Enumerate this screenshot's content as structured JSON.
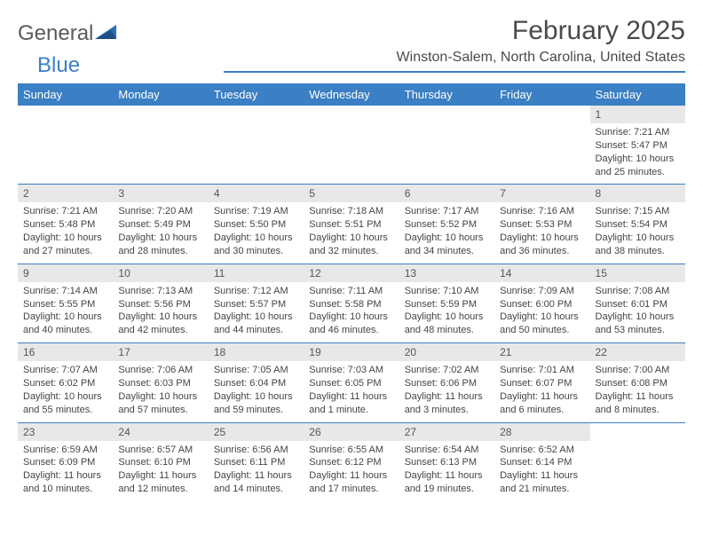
{
  "logo": {
    "text1": "General",
    "text2": "Blue"
  },
  "title": "February 2025",
  "location": "Winston-Salem, North Carolina, United States",
  "colors": {
    "accent": "#3b7fc4",
    "dayHeaderBg": "#e8e8e8",
    "text": "#4a4a4a"
  },
  "weekdays": [
    "Sunday",
    "Monday",
    "Tuesday",
    "Wednesday",
    "Thursday",
    "Friday",
    "Saturday"
  ],
  "weeks": [
    [
      null,
      null,
      null,
      null,
      null,
      null,
      {
        "n": "1",
        "sunrise": "Sunrise: 7:21 AM",
        "sunset": "Sunset: 5:47 PM",
        "daylight": "Daylight: 10 hours and 25 minutes."
      }
    ],
    [
      {
        "n": "2",
        "sunrise": "Sunrise: 7:21 AM",
        "sunset": "Sunset: 5:48 PM",
        "daylight": "Daylight: 10 hours and 27 minutes."
      },
      {
        "n": "3",
        "sunrise": "Sunrise: 7:20 AM",
        "sunset": "Sunset: 5:49 PM",
        "daylight": "Daylight: 10 hours and 28 minutes."
      },
      {
        "n": "4",
        "sunrise": "Sunrise: 7:19 AM",
        "sunset": "Sunset: 5:50 PM",
        "daylight": "Daylight: 10 hours and 30 minutes."
      },
      {
        "n": "5",
        "sunrise": "Sunrise: 7:18 AM",
        "sunset": "Sunset: 5:51 PM",
        "daylight": "Daylight: 10 hours and 32 minutes."
      },
      {
        "n": "6",
        "sunrise": "Sunrise: 7:17 AM",
        "sunset": "Sunset: 5:52 PM",
        "daylight": "Daylight: 10 hours and 34 minutes."
      },
      {
        "n": "7",
        "sunrise": "Sunrise: 7:16 AM",
        "sunset": "Sunset: 5:53 PM",
        "daylight": "Daylight: 10 hours and 36 minutes."
      },
      {
        "n": "8",
        "sunrise": "Sunrise: 7:15 AM",
        "sunset": "Sunset: 5:54 PM",
        "daylight": "Daylight: 10 hours and 38 minutes."
      }
    ],
    [
      {
        "n": "9",
        "sunrise": "Sunrise: 7:14 AM",
        "sunset": "Sunset: 5:55 PM",
        "daylight": "Daylight: 10 hours and 40 minutes."
      },
      {
        "n": "10",
        "sunrise": "Sunrise: 7:13 AM",
        "sunset": "Sunset: 5:56 PM",
        "daylight": "Daylight: 10 hours and 42 minutes."
      },
      {
        "n": "11",
        "sunrise": "Sunrise: 7:12 AM",
        "sunset": "Sunset: 5:57 PM",
        "daylight": "Daylight: 10 hours and 44 minutes."
      },
      {
        "n": "12",
        "sunrise": "Sunrise: 7:11 AM",
        "sunset": "Sunset: 5:58 PM",
        "daylight": "Daylight: 10 hours and 46 minutes."
      },
      {
        "n": "13",
        "sunrise": "Sunrise: 7:10 AM",
        "sunset": "Sunset: 5:59 PM",
        "daylight": "Daylight: 10 hours and 48 minutes."
      },
      {
        "n": "14",
        "sunrise": "Sunrise: 7:09 AM",
        "sunset": "Sunset: 6:00 PM",
        "daylight": "Daylight: 10 hours and 50 minutes."
      },
      {
        "n": "15",
        "sunrise": "Sunrise: 7:08 AM",
        "sunset": "Sunset: 6:01 PM",
        "daylight": "Daylight: 10 hours and 53 minutes."
      }
    ],
    [
      {
        "n": "16",
        "sunrise": "Sunrise: 7:07 AM",
        "sunset": "Sunset: 6:02 PM",
        "daylight": "Daylight: 10 hours and 55 minutes."
      },
      {
        "n": "17",
        "sunrise": "Sunrise: 7:06 AM",
        "sunset": "Sunset: 6:03 PM",
        "daylight": "Daylight: 10 hours and 57 minutes."
      },
      {
        "n": "18",
        "sunrise": "Sunrise: 7:05 AM",
        "sunset": "Sunset: 6:04 PM",
        "daylight": "Daylight: 10 hours and 59 minutes."
      },
      {
        "n": "19",
        "sunrise": "Sunrise: 7:03 AM",
        "sunset": "Sunset: 6:05 PM",
        "daylight": "Daylight: 11 hours and 1 minute."
      },
      {
        "n": "20",
        "sunrise": "Sunrise: 7:02 AM",
        "sunset": "Sunset: 6:06 PM",
        "daylight": "Daylight: 11 hours and 3 minutes."
      },
      {
        "n": "21",
        "sunrise": "Sunrise: 7:01 AM",
        "sunset": "Sunset: 6:07 PM",
        "daylight": "Daylight: 11 hours and 6 minutes."
      },
      {
        "n": "22",
        "sunrise": "Sunrise: 7:00 AM",
        "sunset": "Sunset: 6:08 PM",
        "daylight": "Daylight: 11 hours and 8 minutes."
      }
    ],
    [
      {
        "n": "23",
        "sunrise": "Sunrise: 6:59 AM",
        "sunset": "Sunset: 6:09 PM",
        "daylight": "Daylight: 11 hours and 10 minutes."
      },
      {
        "n": "24",
        "sunrise": "Sunrise: 6:57 AM",
        "sunset": "Sunset: 6:10 PM",
        "daylight": "Daylight: 11 hours and 12 minutes."
      },
      {
        "n": "25",
        "sunrise": "Sunrise: 6:56 AM",
        "sunset": "Sunset: 6:11 PM",
        "daylight": "Daylight: 11 hours and 14 minutes."
      },
      {
        "n": "26",
        "sunrise": "Sunrise: 6:55 AM",
        "sunset": "Sunset: 6:12 PM",
        "daylight": "Daylight: 11 hours and 17 minutes."
      },
      {
        "n": "27",
        "sunrise": "Sunrise: 6:54 AM",
        "sunset": "Sunset: 6:13 PM",
        "daylight": "Daylight: 11 hours and 19 minutes."
      },
      {
        "n": "28",
        "sunrise": "Sunrise: 6:52 AM",
        "sunset": "Sunset: 6:14 PM",
        "daylight": "Daylight: 11 hours and 21 minutes."
      },
      null
    ]
  ]
}
